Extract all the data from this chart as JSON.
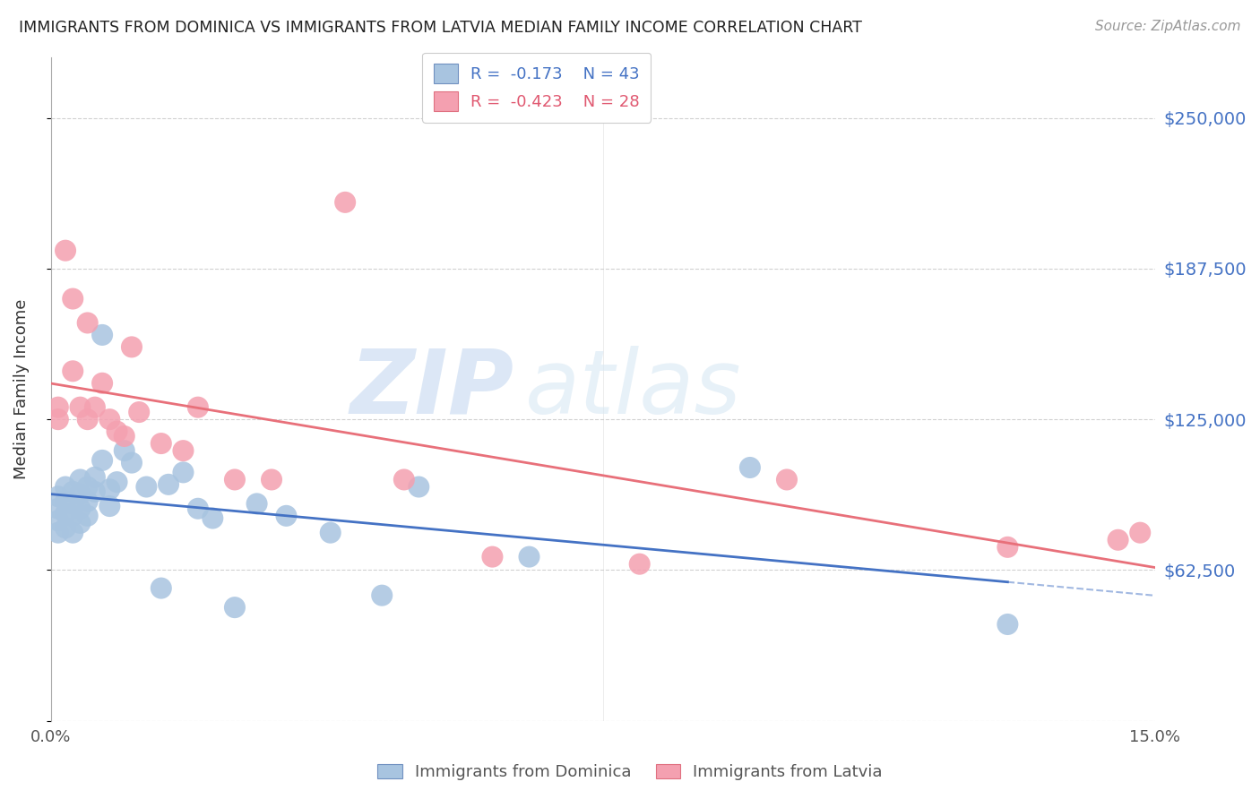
{
  "title": "IMMIGRANTS FROM DOMINICA VS IMMIGRANTS FROM LATVIA MEDIAN FAMILY INCOME CORRELATION CHART",
  "source": "Source: ZipAtlas.com",
  "ylabel": "Median Family Income",
  "xlim": [
    0.0,
    0.15
  ],
  "ylim": [
    0,
    275000
  ],
  "yticks": [
    0,
    62500,
    125000,
    187500,
    250000
  ],
  "ytick_labels": [
    "",
    "$62,500",
    "$125,000",
    "$187,500",
    "$250,000"
  ],
  "xticks": [
    0.0,
    0.03,
    0.06,
    0.09,
    0.12,
    0.15
  ],
  "xtick_labels": [
    "0.0%",
    "",
    "",
    "",
    "",
    "15.0%"
  ],
  "legend_label1": "Immigrants from Dominica",
  "legend_label2": "Immigrants from Latvia",
  "color_dominica": "#a8c4e0",
  "color_latvia": "#f4a0b0",
  "color_dominica_line": "#4472c4",
  "color_latvia_line": "#e8707a",
  "watermark_zip": "ZIP",
  "watermark_atlas": "atlas",
  "dominica_x": [
    0.001,
    0.001,
    0.001,
    0.001,
    0.002,
    0.002,
    0.002,
    0.002,
    0.003,
    0.003,
    0.003,
    0.003,
    0.004,
    0.004,
    0.004,
    0.004,
    0.005,
    0.005,
    0.005,
    0.006,
    0.006,
    0.007,
    0.007,
    0.008,
    0.008,
    0.009,
    0.01,
    0.011,
    0.013,
    0.015,
    0.016,
    0.018,
    0.02,
    0.022,
    0.025,
    0.028,
    0.032,
    0.038,
    0.045,
    0.05,
    0.065,
    0.095,
    0.13
  ],
  "dominica_y": [
    93000,
    88000,
    83000,
    78000,
    97000,
    91000,
    86000,
    80000,
    95000,
    90000,
    85000,
    78000,
    100000,
    94000,
    88000,
    82000,
    97000,
    91000,
    85000,
    101000,
    95000,
    160000,
    108000,
    96000,
    89000,
    99000,
    112000,
    107000,
    97000,
    55000,
    98000,
    103000,
    88000,
    84000,
    47000,
    90000,
    85000,
    78000,
    52000,
    97000,
    68000,
    105000,
    40000
  ],
  "latvia_x": [
    0.001,
    0.001,
    0.002,
    0.003,
    0.003,
    0.004,
    0.005,
    0.005,
    0.006,
    0.007,
    0.008,
    0.009,
    0.01,
    0.011,
    0.012,
    0.015,
    0.018,
    0.02,
    0.025,
    0.03,
    0.04,
    0.048,
    0.06,
    0.08,
    0.1,
    0.13,
    0.145,
    0.148
  ],
  "latvia_y": [
    130000,
    125000,
    195000,
    175000,
    145000,
    130000,
    125000,
    165000,
    130000,
    140000,
    125000,
    120000,
    118000,
    155000,
    128000,
    115000,
    112000,
    130000,
    100000,
    100000,
    215000,
    100000,
    68000,
    65000,
    100000,
    72000,
    75000,
    78000
  ]
}
